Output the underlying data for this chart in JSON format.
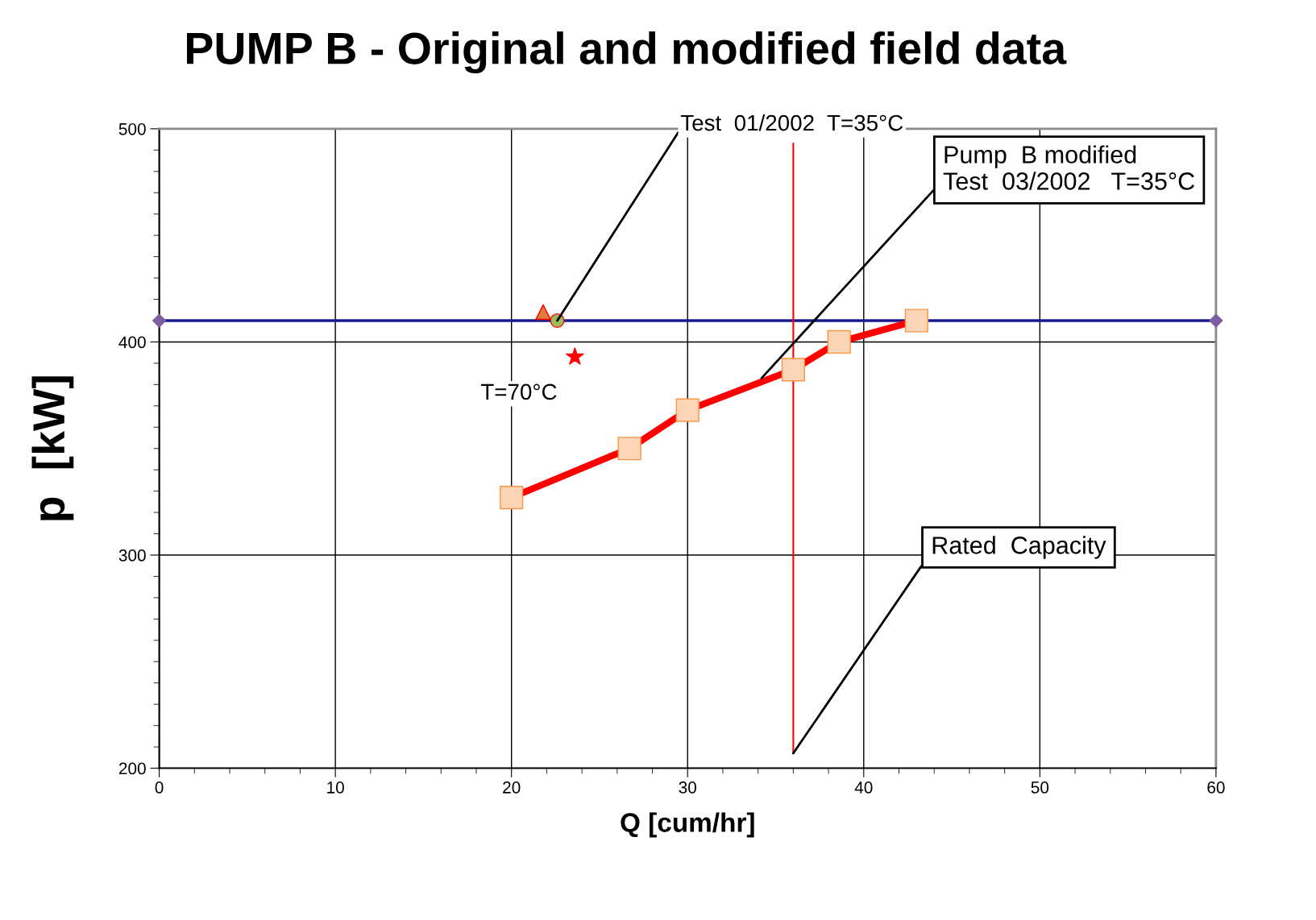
{
  "chart_data": {
    "type": "line",
    "title": "PUMP B - Original and modified field data",
    "xlabel": "Q [cum/hr]",
    "ylabel": "p  [kW]",
    "xlim": [
      0,
      60
    ],
    "ylim": [
      200,
      500
    ],
    "xticks": [
      0,
      10,
      20,
      30,
      40,
      50,
      60
    ],
    "yticks": [
      200,
      300,
      400,
      500
    ],
    "grid": true,
    "series": [
      {
        "color": "#1a1a8c",
        "marker": "diamond",
        "x": [
          0,
          60
        ],
        "values": [
          410,
          410
        ]
      },
      {
        "color": "#ff0000",
        "marker": "none",
        "x": [
          36,
          36
        ],
        "values": [
          493,
          207
        ]
      },
      {
        "color": "#ff0000",
        "marker": "square",
        "x": [
          20,
          26.7,
          30,
          36,
          38.6,
          43
        ],
        "values": [
          327,
          350,
          368,
          387,
          400,
          410
        ]
      },
      {
        "type": "scatter",
        "color": "#e07b39",
        "marker": "triangle",
        "x": [
          21.8
        ],
        "values": [
          414
        ]
      },
      {
        "type": "scatter",
        "color": "#9bbb59",
        "marker": "circle",
        "x": [
          22.6
        ],
        "values": [
          410
        ]
      },
      {
        "type": "scatter",
        "color": "#ff0000",
        "marker": "star",
        "x": [
          23.6
        ],
        "values": [
          393
        ]
      }
    ],
    "annotations": [
      {
        "text": "Test  01/2002  T=35°C",
        "x": 22.6,
        "y": 410
      },
      {
        "text": "Pump  B modified\nTest  03/2002   T=35°C",
        "x": 34.2,
        "y": 383
      },
      {
        "text": "Rated  Capacity",
        "x": 36,
        "y": 207
      },
      {
        "text": "T=70°C",
        "x": 23.6,
        "y": 393
      }
    ]
  }
}
